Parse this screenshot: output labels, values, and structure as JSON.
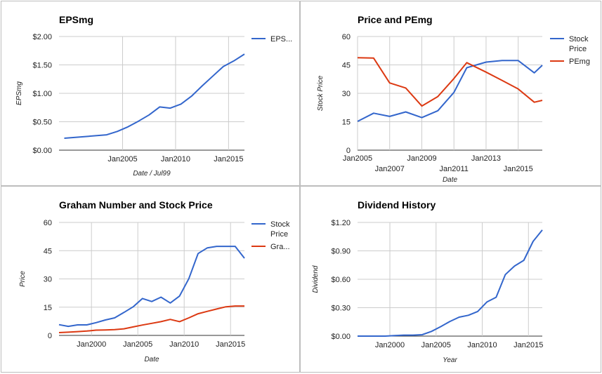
{
  "chart_data": [
    {
      "type": "line",
      "title": "EPSmg",
      "xlabel": "Date / Jul99",
      "ylabel": "EPSmg",
      "xlim": [
        1999.0,
        2016.5
      ],
      "ylim": [
        0,
        2
      ],
      "x_ticks": [
        {
          "value": 2005,
          "label": "Jan2005"
        },
        {
          "value": 2010,
          "label": "Jan2010"
        },
        {
          "value": 2015,
          "label": "Jan2015"
        }
      ],
      "y_ticks": [
        {
          "value": 0,
          "label": "$0.00"
        },
        {
          "value": 0.5,
          "label": "$0.50"
        },
        {
          "value": 1,
          "label": "$1.00"
        },
        {
          "value": 1.5,
          "label": "$1.50"
        },
        {
          "value": 2,
          "label": "$2.00"
        }
      ],
      "legend": "right",
      "series": [
        {
          "name": "EPS...",
          "color": "#3366cc",
          "x": [
            1999.5,
            2001.5,
            2003.5,
            2004.5,
            2005.5,
            2006.5,
            2007.5,
            2008.5,
            2009.5,
            2010.5,
            2011.5,
            2012.5,
            2013.5,
            2014.5,
            2015.5,
            2016.5
          ],
          "values": [
            0.21,
            0.24,
            0.27,
            0.33,
            0.41,
            0.51,
            0.62,
            0.76,
            0.74,
            0.81,
            0.95,
            1.13,
            1.3,
            1.47,
            1.57,
            1.69
          ]
        }
      ]
    },
    {
      "type": "line",
      "title": "Price and PEmg",
      "xlabel": "Date",
      "ylabel": "Stock Price",
      "xlim": [
        2005.0,
        2016.5
      ],
      "ylim": [
        0,
        60
      ],
      "x_ticks": [
        {
          "value": 2005,
          "label": "Jan2005",
          "row": 0
        },
        {
          "value": 2007,
          "label": "Jan2007",
          "row": 1
        },
        {
          "value": 2009,
          "label": "Jan2009",
          "row": 0
        },
        {
          "value": 2011,
          "label": "Jan2011",
          "row": 1
        },
        {
          "value": 2013,
          "label": "Jan2013",
          "row": 0
        },
        {
          "value": 2015,
          "label": "Jan2015",
          "row": 1
        }
      ],
      "y_ticks": [
        {
          "value": 0,
          "label": "0"
        },
        {
          "value": 15,
          "label": "15"
        },
        {
          "value": 30,
          "label": "30"
        },
        {
          "value": 45,
          "label": "45"
        },
        {
          "value": 60,
          "label": "60"
        }
      ],
      "legend": "right",
      "series": [
        {
          "name": "Stock Price",
          "color": "#3366cc",
          "x": [
            2005.0,
            2006.0,
            2007.0,
            2008.0,
            2009.0,
            2010.0,
            2011.0,
            2011.8,
            2013.0,
            2014.0,
            2015.0,
            2016.0,
            2016.5
          ],
          "values": [
            15.2,
            19.5,
            17.8,
            20.2,
            17.2,
            20.8,
            30.5,
            43.5,
            46.5,
            47.3,
            47.3,
            40.8,
            44.8
          ]
        },
        {
          "name": "PEmg",
          "color": "#dc3912",
          "x": [
            2005.0,
            2006.0,
            2007.0,
            2008.0,
            2009.0,
            2010.0,
            2011.0,
            2011.8,
            2013.0,
            2014.0,
            2015.0,
            2016.0,
            2016.5
          ],
          "values": [
            48.8,
            48.6,
            35.5,
            32.8,
            23.3,
            28.3,
            37.8,
            46.2,
            41.2,
            36.8,
            32.3,
            25.3,
            26.3
          ]
        }
      ]
    },
    {
      "type": "line",
      "title": "Graham Number and Stock Price",
      "xlabel": "Date",
      "ylabel": "Price",
      "xlim": [
        1996.5,
        2016.5
      ],
      "ylim": [
        0,
        60
      ],
      "x_ticks": [
        {
          "value": 2000,
          "label": "Jan2000"
        },
        {
          "value": 2005,
          "label": "Jan2005"
        },
        {
          "value": 2010,
          "label": "Jan2010"
        },
        {
          "value": 2015,
          "label": "Jan2015"
        }
      ],
      "y_ticks": [
        {
          "value": 0,
          "label": "0"
        },
        {
          "value": 15,
          "label": "15"
        },
        {
          "value": 30,
          "label": "30"
        },
        {
          "value": 45,
          "label": "45"
        },
        {
          "value": 60,
          "label": "60"
        }
      ],
      "legend": "right",
      "series": [
        {
          "name": "Stock Price",
          "color": "#3366cc",
          "x": [
            1996.5,
            1997.5,
            1998.5,
            1999.5,
            2000.5,
            2001.5,
            2002.5,
            2003.5,
            2004.5,
            2005.5,
            2006.5,
            2007.5,
            2008.5,
            2009.5,
            2010.5,
            2011.5,
            2012.5,
            2013.5,
            2014.5,
            2015.5,
            2016.5
          ],
          "values": [
            5.7,
            4.8,
            5.6,
            5.6,
            6.8,
            8.2,
            9.3,
            12.2,
            15.2,
            19.6,
            18.0,
            20.3,
            17.2,
            20.9,
            30.1,
            43.5,
            46.5,
            47.3,
            47.3,
            47.3,
            41.0
          ]
        },
        {
          "name": "Gra...",
          "color": "#dc3912",
          "x": [
            1996.5,
            1997.5,
            1998.5,
            1999.5,
            2000.5,
            2001.5,
            2002.5,
            2003.5,
            2004.5,
            2005.5,
            2006.5,
            2007.5,
            2008.5,
            2009.5,
            2010.5,
            2011.5,
            2012.5,
            2013.5,
            2014.5,
            2015.5,
            2016.5
          ],
          "values": [
            1.5,
            1.7,
            2.0,
            2.3,
            2.8,
            2.9,
            3.1,
            3.5,
            4.5,
            5.5,
            6.4,
            7.3,
            8.5,
            7.3,
            9.3,
            11.5,
            12.8,
            14.0,
            15.2,
            15.6,
            15.6
          ]
        }
      ]
    },
    {
      "type": "line",
      "title": "Dividend History",
      "xlabel": "Year",
      "ylabel": "Dividend",
      "xlim": [
        1996.5,
        2016.5
      ],
      "ylim": [
        0,
        1.2
      ],
      "x_ticks": [
        {
          "value": 2000,
          "label": "Jan2000"
        },
        {
          "value": 2005,
          "label": "Jan2005"
        },
        {
          "value": 2010,
          "label": "Jan2010"
        },
        {
          "value": 2015,
          "label": "Jan2015"
        }
      ],
      "y_ticks": [
        {
          "value": 0,
          "label": "$0.00"
        },
        {
          "value": 0.3,
          "label": "$0.30"
        },
        {
          "value": 0.6,
          "label": "$0.60"
        },
        {
          "value": 0.9,
          "label": "$0.90"
        },
        {
          "value": 1.2,
          "label": "$1.20"
        }
      ],
      "legend": "none",
      "series": [
        {
          "name": "",
          "color": "#3366cc",
          "x": [
            1996.5,
            1997.5,
            1998.5,
            1999.5,
            2000.5,
            2001.5,
            2002.5,
            2003.5,
            2004.5,
            2005.5,
            2006.5,
            2007.5,
            2008.5,
            2009.5,
            2010.5,
            2011.5,
            2012.5,
            2013.5,
            2014.5,
            2015.5,
            2016.5
          ],
          "values": [
            0.0,
            0.0,
            0.0,
            0.0,
            0.005,
            0.01,
            0.01,
            0.015,
            0.05,
            0.1,
            0.155,
            0.2,
            0.22,
            0.26,
            0.36,
            0.41,
            0.65,
            0.74,
            0.8,
            1.0,
            1.12
          ]
        }
      ]
    }
  ]
}
